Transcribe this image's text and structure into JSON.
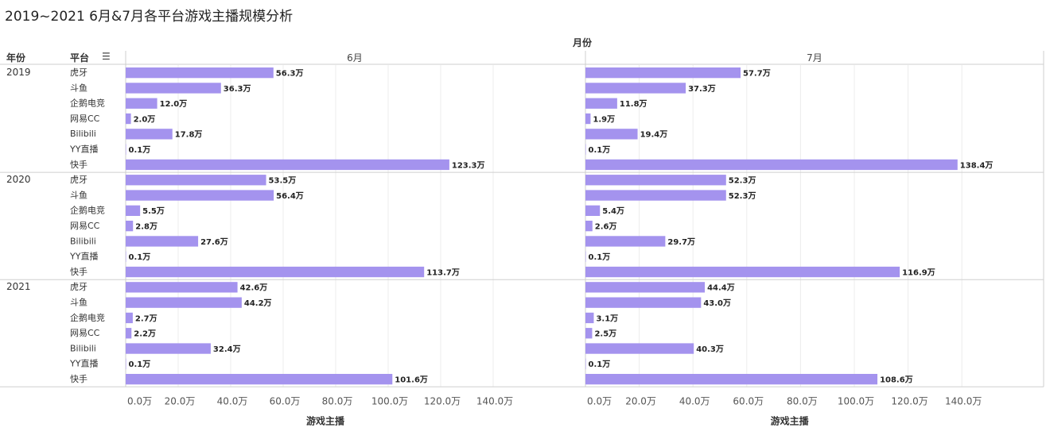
{
  "title": "2019~2021 6月&7月各平台游戏主播规模分析",
  "headers": {
    "column_group": "月份",
    "year_col": "年份",
    "platform_col": "平台",
    "sort_icon": "sort-descending-icon",
    "x_axis_label": "游戏主播"
  },
  "chart_data": {
    "type": "bar",
    "orientation": "horizontal",
    "title": "2019~2021 6月&7月各平台游戏主播规模分析",
    "xlabel": "游戏主播",
    "column_group_label": "月份",
    "panels": [
      "6月",
      "7月"
    ],
    "years": [
      "2019",
      "2020",
      "2021"
    ],
    "platforms": [
      "虎牙",
      "斗鱼",
      "企鹅电竞",
      "网易CC",
      "Bilibili",
      "YY直播",
      "快手"
    ],
    "unit": "万",
    "xlim": [
      0,
      140
    ],
    "xticks": [
      0,
      20,
      40,
      60,
      80,
      100,
      120,
      140
    ],
    "xtick_labels": [
      "0.0万",
      "20.0万",
      "40.0万",
      "60.0万",
      "80.0万",
      "100.0万",
      "120.0万",
      "140.0万"
    ],
    "values": {
      "6月": {
        "2019": [
          56.3,
          36.3,
          12.0,
          2.0,
          17.8,
          0.1,
          123.3
        ],
        "2020": [
          53.5,
          56.4,
          5.5,
          2.8,
          27.6,
          0.1,
          113.7
        ],
        "2021": [
          42.6,
          44.2,
          2.7,
          2.2,
          32.4,
          0.1,
          101.6
        ]
      },
      "7月": {
        "2019": [
          57.7,
          37.3,
          11.8,
          1.9,
          19.4,
          0.1,
          138.4
        ],
        "2020": [
          52.3,
          52.3,
          5.4,
          2.6,
          29.7,
          0.1,
          116.9
        ],
        "2021": [
          44.4,
          43.0,
          3.1,
          2.5,
          40.3,
          0.1,
          108.6
        ]
      }
    },
    "bar_color": "#a493ee",
    "grid": true,
    "legend": "none"
  }
}
